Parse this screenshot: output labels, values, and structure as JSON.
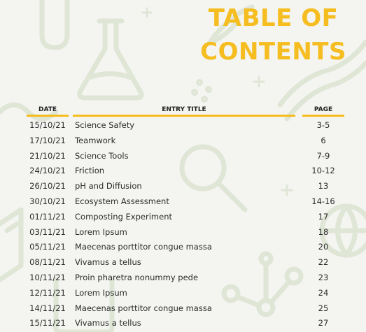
{
  "title": {
    "line1": "TABLE OF",
    "line2": "CONTENTS"
  },
  "columns": {
    "date": "DATE",
    "title": "ENTRY TITLE",
    "page": "PAGE"
  },
  "entries": [
    {
      "date": "15/10/21",
      "title": "Science Safety",
      "page": "3-5"
    },
    {
      "date": "17/10/21",
      "title": "Teamwork",
      "page": "6"
    },
    {
      "date": "21/10/21",
      "title": "Science Tools",
      "page": "7-9"
    },
    {
      "date": "24/10/21",
      "title": "Friction",
      "page": "10-12"
    },
    {
      "date": "26/10/21",
      "title": "pH and Diffusion",
      "page": "13"
    },
    {
      "date": "30/10/21",
      "title": "Ecosystem Assessment",
      "page": "14-16"
    },
    {
      "date": "01/11/21",
      "title": "Composting Experiment",
      "page": "17"
    },
    {
      "date": "03/11/21",
      "title": "Lorem Ipsum",
      "page": "18"
    },
    {
      "date": "05/11/21",
      "title": "Maecenas porttitor congue massa",
      "page": "20"
    },
    {
      "date": "08/11/21",
      "title": "Vivamus a tellus",
      "page": "22"
    },
    {
      "date": "10/11/21",
      "title": "Proin pharetra nonummy pede",
      "page": "23"
    },
    {
      "date": "12/11/21",
      "title": "Lorem Ipsum",
      "page": "24"
    },
    {
      "date": "14/11/21",
      "title": "Maecenas porttitor congue massa",
      "page": "25"
    },
    {
      "date": "15/11/21",
      "title": "Vivamus a tellus",
      "page": "27"
    }
  ],
  "colors": {
    "accent": "#f5bd1f",
    "decoration": "#dfe6d6",
    "text": "#2b2b2b"
  }
}
